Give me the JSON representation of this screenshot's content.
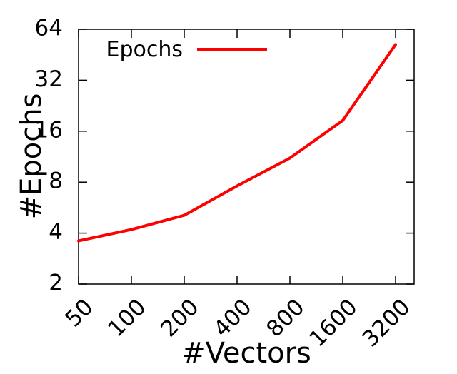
{
  "chart_data": {
    "type": "line",
    "xlabel": "#Vectors",
    "ylabel": "#Epochs",
    "x_scale": "log2",
    "y_scale": "log2",
    "x": [
      50,
      100,
      200,
      400,
      800,
      1600,
      3200
    ],
    "x_tick_labels": [
      "50",
      "100",
      "200",
      "400",
      "800",
      "1600",
      "3200"
    ],
    "y_ticks": [
      2,
      4,
      8,
      16,
      32,
      64
    ],
    "y_tick_labels": [
      "2",
      "4",
      "8",
      "16",
      "32",
      "64"
    ],
    "ylim": [
      2,
      64
    ],
    "grid": false,
    "legend_position": "top-left",
    "series": [
      {
        "name": "Epochs",
        "color": "#ff0000",
        "values": [
          3.6,
          4.2,
          5.1,
          7.6,
          11.1,
          18.5,
          52
        ]
      }
    ]
  }
}
